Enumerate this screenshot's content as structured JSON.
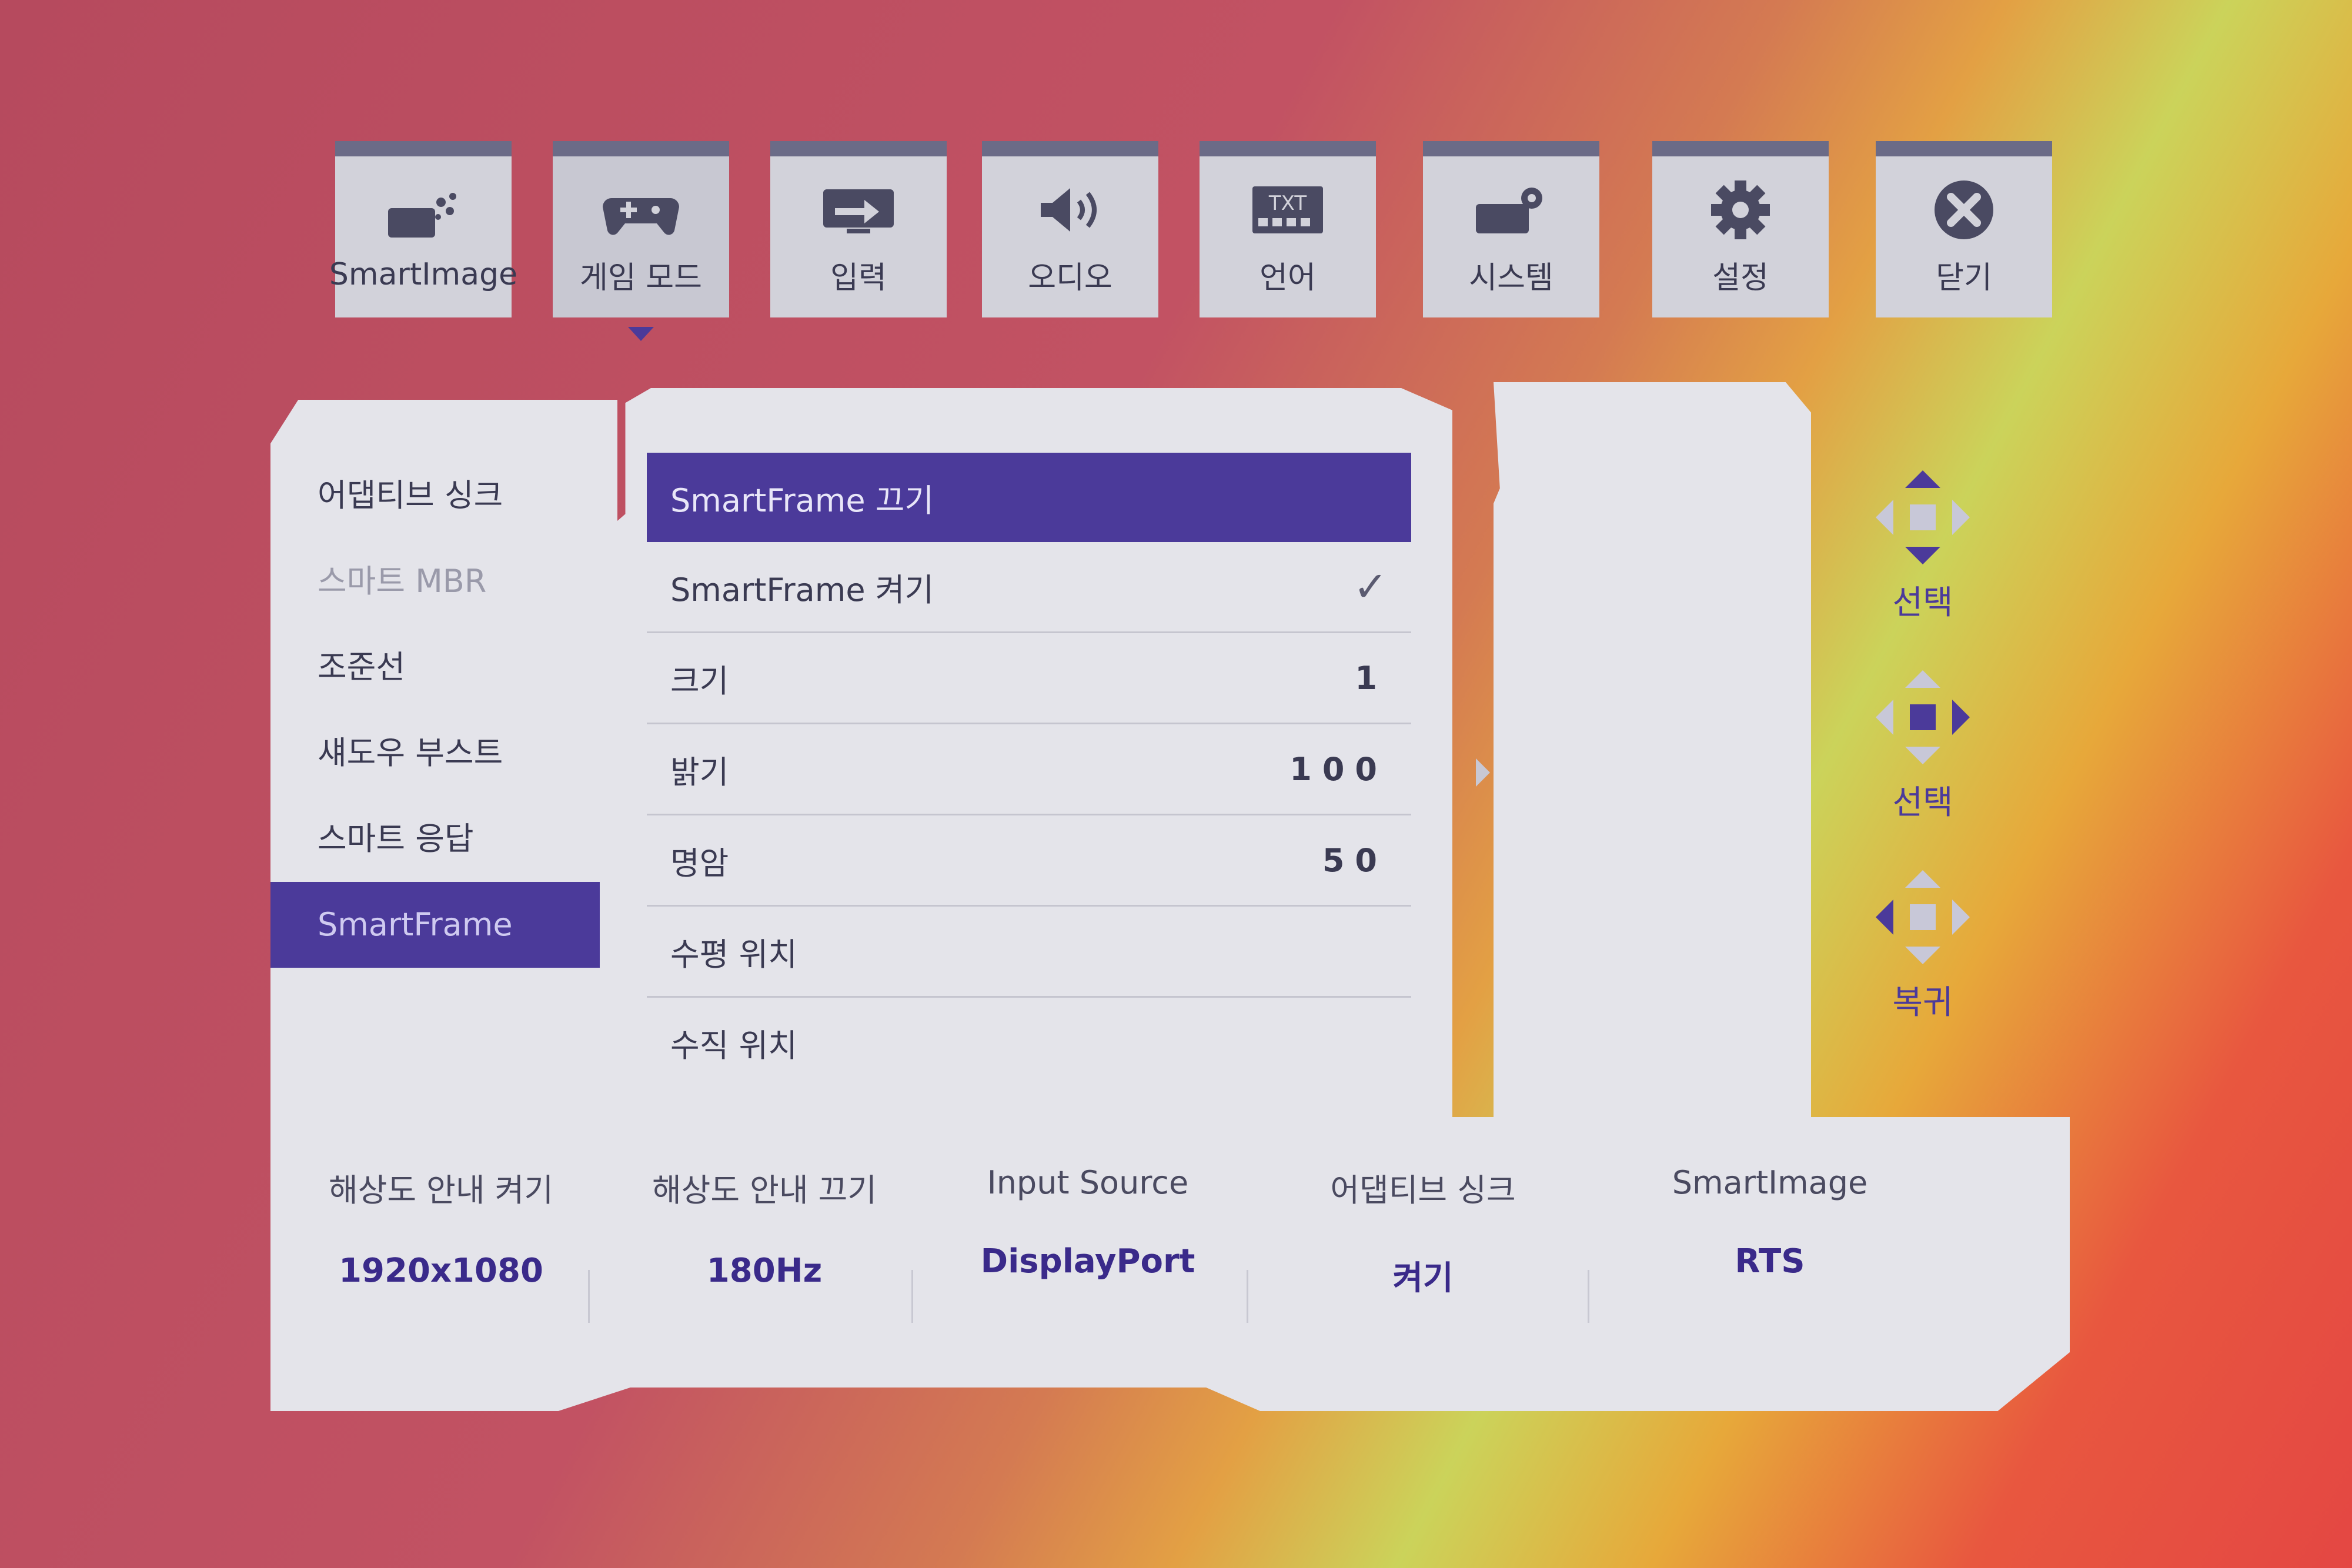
{
  "tabs": [
    {
      "label": "SmartImage",
      "icon": "smartimage-icon"
    },
    {
      "label": "게임 모드",
      "icon": "gamepad-icon",
      "selected": true
    },
    {
      "label": "입력",
      "icon": "input-icon"
    },
    {
      "label": "오디오",
      "icon": "speaker-icon"
    },
    {
      "label": "언어",
      "icon": "txt-icon",
      "icon_text": "TXT"
    },
    {
      "label": "시스템",
      "icon": "system-icon"
    },
    {
      "label": "설정",
      "icon": "gear-icon"
    },
    {
      "label": "닫기",
      "icon": "close-icon"
    }
  ],
  "left_menu": [
    {
      "label": "어댑티브 싱크"
    },
    {
      "label": "스마트 MBR",
      "disabled": true
    },
    {
      "label": "조준선"
    },
    {
      "label": "섀도우 부스트"
    },
    {
      "label": "스마트 응답"
    },
    {
      "label": "SmartFrame",
      "selected": true
    }
  ],
  "submenu": [
    {
      "label": "SmartFrame 끄기",
      "selected": true
    },
    {
      "label": "SmartFrame 켜기",
      "checked": true
    },
    {
      "label": "크기",
      "value": "1"
    },
    {
      "label": "밝기",
      "value": "100"
    },
    {
      "label": "명암",
      "value": "50"
    },
    {
      "label": "수평 위치"
    },
    {
      "label": "수직 위치"
    }
  ],
  "nav_hints": {
    "select_updown": "선택",
    "select_right": "선택",
    "back": "복귀"
  },
  "info_bar": [
    {
      "key": "해상도 안내 켜기",
      "value": "1920x1080"
    },
    {
      "key": "해상도 안내 끄기",
      "value": "180Hz"
    },
    {
      "key": "Input Source",
      "value": "DisplayPort"
    },
    {
      "key": "어댑티브 싱크",
      "value": "켜기"
    },
    {
      "key": "SmartImage",
      "value": "RTS"
    }
  ],
  "colors": {
    "accent": "#4b3a9a",
    "panel": "#e4e4ea",
    "tab": "#d2d2da"
  }
}
